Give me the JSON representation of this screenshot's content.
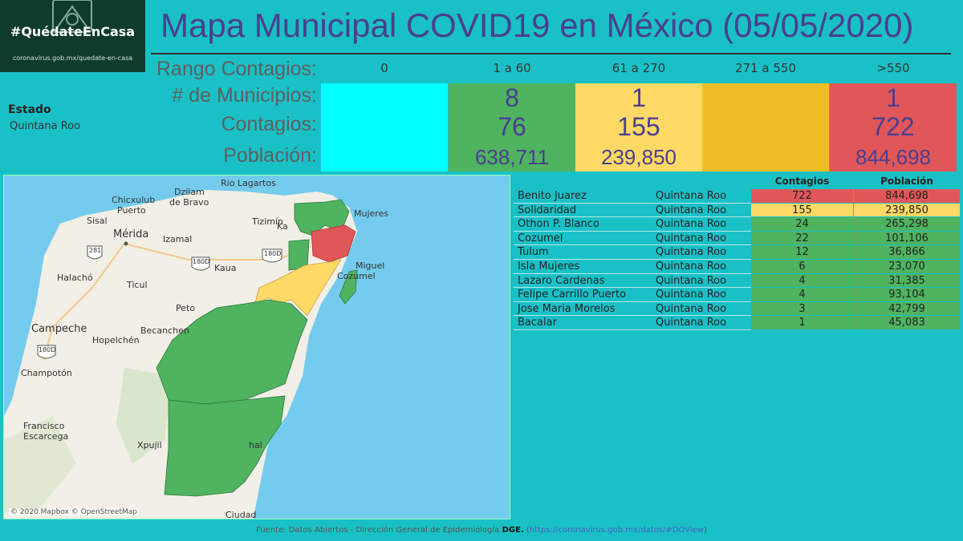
{
  "banner": {
    "hashtag": "#QuédateEnCasa",
    "url": "coronavirus.gob.mx/quedate-en-casa"
  },
  "title": "Mapa Municipal COVID19 en México (05/05/2020)",
  "labels": {
    "rango": "Rango Contagios:",
    "municipios": "# de Municipios:",
    "contagios": "Contagios:",
    "poblacion": "Población:"
  },
  "ranges": [
    {
      "label": "0",
      "color": "#00ffff",
      "municipios": "",
      "contagios": "",
      "poblacion": ""
    },
    {
      "label": "1 a 60",
      "color": "#4fb360",
      "municipios": "8",
      "contagios": "76",
      "poblacion": "638,711"
    },
    {
      "label": "61 a 270",
      "color": "#ffd966",
      "municipios": "1",
      "contagios": "155",
      "poblacion": "239,850"
    },
    {
      "label": "271 a 550",
      "color": "#f0bd27",
      "municipios": "",
      "contagios": "",
      "poblacion": ""
    },
    {
      "label": ">550",
      "color": "#e15759",
      "municipios": "1",
      "contagios": "722",
      "poblacion": "844,698"
    }
  ],
  "estado": {
    "label": "Estado",
    "value": "Quintana Roo"
  },
  "map": {
    "labels": {
      "rio_lagartos": "Rio Lagartos",
      "dzilam": "Dzilam",
      "de_bravo": "de Bravo",
      "chicxulub": "Chicxulub",
      "puerto": "Puerto",
      "sisal": "Sisal",
      "merida": "Mérida",
      "izamal": "Izamal",
      "tizimin": "Tizimín",
      "kaua": "Kaua",
      "halacho": "Halachó",
      "ticul": "Ticul",
      "peto": "Peto",
      "campeche": "Campeche",
      "becanchen": "Becanchen",
      "hopelchen": "Hopelchén",
      "champoton": "Champotón",
      "francisco": "Francisco",
      "escarcega": "Escarcega",
      "xpujil": "Xpujil",
      "ciudad": "Ciudad",
      "mujeres": "Mujeres",
      "ka": "Ka",
      "miguel": "Miguel",
      "cozumel": "Cozumel",
      "chal": "hal",
      "shield_281": "281",
      "shield_180d_a": "180D",
      "shield_180d_b": "180D",
      "shield_180d_c": "180D"
    },
    "attribution": "© 2020 Mapbox © OpenStreetMap"
  },
  "table": {
    "headers": {
      "contagios": "Contagios",
      "poblacion": "Población"
    },
    "rows": [
      {
        "municipio": "Benito Juarez",
        "estado": "Quintana Roo",
        "contagios": "722",
        "poblacion": "844,698",
        "color": "#e15759"
      },
      {
        "municipio": "Solidaridad",
        "estado": "Quintana Roo",
        "contagios": "155",
        "poblacion": "239,850",
        "color": "#ffd966"
      },
      {
        "municipio": "Othon P. Blanco",
        "estado": "Quintana Roo",
        "contagios": "24",
        "poblacion": "265,298",
        "color": "#4fb360"
      },
      {
        "municipio": "Cozumel",
        "estado": "Quintana Roo",
        "contagios": "22",
        "poblacion": "101,106",
        "color": "#4fb360"
      },
      {
        "municipio": "Tulum",
        "estado": "Quintana Roo",
        "contagios": "12",
        "poblacion": "36,866",
        "color": "#4fb360"
      },
      {
        "municipio": "Isla Mujeres",
        "estado": "Quintana Roo",
        "contagios": "6",
        "poblacion": "23,070",
        "color": "#4fb360"
      },
      {
        "municipio": "Lazaro Cardenas",
        "estado": "Quintana Roo",
        "contagios": "4",
        "poblacion": "31,385",
        "color": "#4fb360"
      },
      {
        "municipio": "Felipe Carrillo Puerto",
        "estado": "Quintana Roo",
        "contagios": "4",
        "poblacion": "93,104",
        "color": "#4fb360"
      },
      {
        "municipio": "Jose Maria Morelos",
        "estado": "Quintana Roo",
        "contagios": "3",
        "poblacion": "42,799",
        "color": "#4fb360"
      },
      {
        "municipio": "Bacalar",
        "estado": "Quintana Roo",
        "contagios": "1",
        "poblacion": "45,083",
        "color": "#4fb360"
      }
    ]
  },
  "footer": {
    "prefix": "Fuente: Datos Abiertos - Dirección General de Epidemiología ",
    "dge": "DGE.",
    "open": " (",
    "link": "https://coronavirus.gob.mx/datos/#DOView",
    "close": ")"
  }
}
